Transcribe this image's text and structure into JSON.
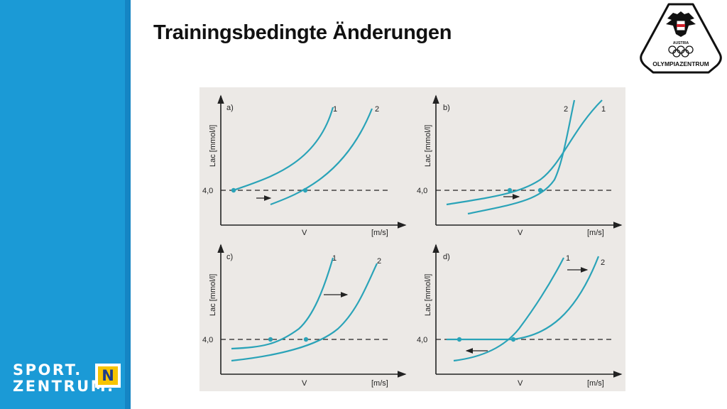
{
  "slide": {
    "title": "Trainingsbedingte Änderungen"
  },
  "branding": {
    "olympia_logo_text": "OLYMPIAZENTRUM",
    "olympia_logo_sub": "AUSTRIA",
    "sport_logo_line1": "SPORT.",
    "sport_logo_line2": "ZENTRUM.",
    "sport_logo_badge": "N"
  },
  "colors": {
    "sidebar": "#1b9ad6",
    "curve": "#2aa3b8",
    "figure_background": "#ece9e6"
  },
  "figure": {
    "panels": [
      {
        "label": "a)",
        "y_axis_label": "Lac  [mmol/l]",
        "y_tick": "4,0",
        "x_axis_label": "V",
        "x_unit": "[m/s]",
        "curve_labels": [
          "1",
          "2"
        ]
      },
      {
        "label": "b)",
        "y_axis_label": "Lac  [mmol/l]",
        "y_tick": "4,0",
        "x_axis_label": "V",
        "x_unit": "[m/s]",
        "curve_labels": [
          "2",
          "1"
        ]
      },
      {
        "label": "c)",
        "y_axis_label": "Lac  [mmol/l]",
        "y_tick": "4,0",
        "x_axis_label": "V",
        "x_unit": "[m/s]",
        "curve_labels": [
          "1",
          "2"
        ]
      },
      {
        "label": "d)",
        "y_axis_label": "Lac  [mmol/l]",
        "y_tick": "4,0",
        "x_axis_label": "V",
        "x_unit": "[m/s]",
        "curve_labels": [
          "1",
          "2"
        ]
      }
    ]
  }
}
